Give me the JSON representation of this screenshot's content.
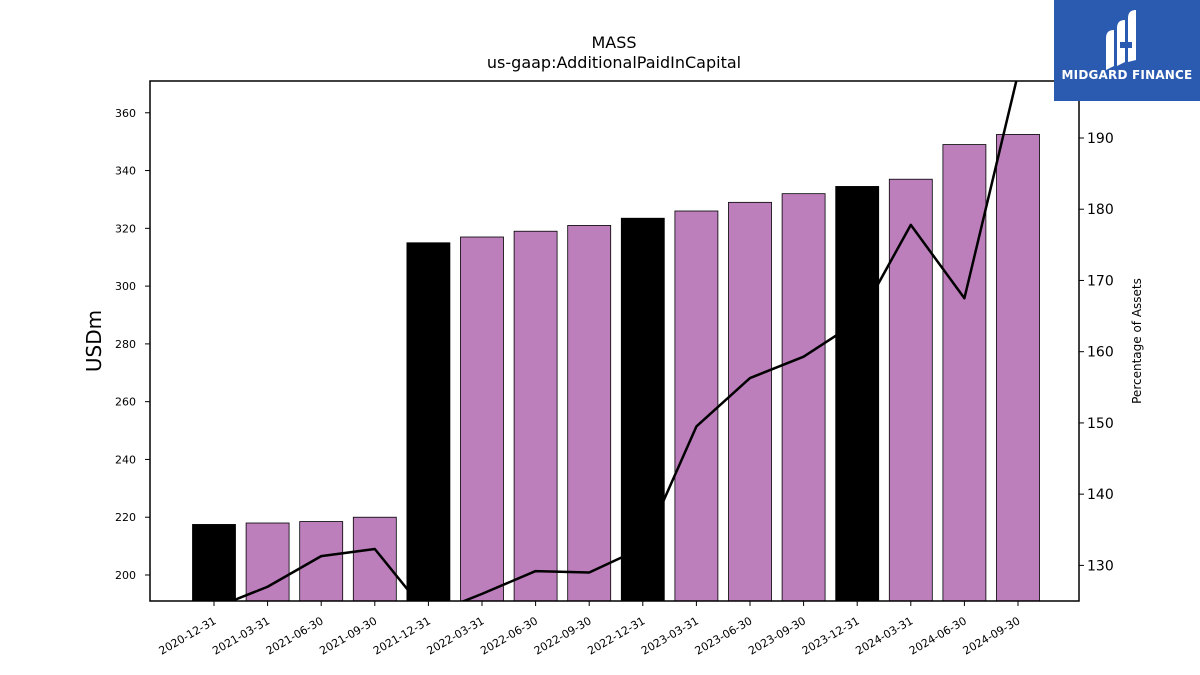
{
  "chart_data": {
    "type": "bar",
    "title": "MASS",
    "subtitle": "us-gaap:AdditionalPaidInCapital",
    "ylabel": "USDm",
    "y2label": "Percentage of Assets",
    "categories": [
      "2020-12-31",
      "2021-03-31",
      "2021-06-30",
      "2021-09-30",
      "2021-12-31",
      "2022-03-31",
      "2022-06-30",
      "2022-09-30",
      "2022-12-31",
      "2023-03-31",
      "2023-06-30",
      "2023-09-30",
      "2023-12-31",
      "2024-03-31",
      "2024-06-30",
      "2024-09-30"
    ],
    "values": [
      217.5,
      218,
      218.5,
      220,
      315,
      317,
      319,
      321,
      323.5,
      326,
      329,
      332,
      334.5,
      337,
      349,
      352.5
    ],
    "bar_colors": [
      "#000000",
      "#bc7fbc",
      "#bc7fbc",
      "#bc7fbc",
      "#000000",
      "#bc7fbc",
      "#bc7fbc",
      "#bc7fbc",
      "#000000",
      "#bc7fbc",
      "#bc7fbc",
      "#bc7fbc",
      "#000000",
      "#bc7fbc",
      "#bc7fbc",
      "#bc7fbc"
    ],
    "line_series": {
      "axis": "right",
      "values": [
        124,
        127,
        131.3,
        132.3,
        123,
        126,
        129.2,
        129,
        132.5,
        149.5,
        156.3,
        159.3,
        164.2,
        177.8,
        167.5,
        199
      ]
    },
    "ylim": [
      191,
      371
    ],
    "y_ticks": [
      200,
      220,
      240,
      260,
      280,
      300,
      320,
      340,
      360
    ],
    "y2lim": [
      125,
      198
    ],
    "y2_ticks": [
      130,
      140,
      150,
      160,
      170,
      180,
      190
    ],
    "grid": false,
    "colors": {
      "accent_bar": "#bc7fbc",
      "year_end_bar": "#000000",
      "line": "#000000",
      "logo_bg": "#2b5bb0"
    }
  },
  "logo": {
    "text": "MIDGARD FINANCE",
    "icon": "midgard-logo-icon"
  }
}
